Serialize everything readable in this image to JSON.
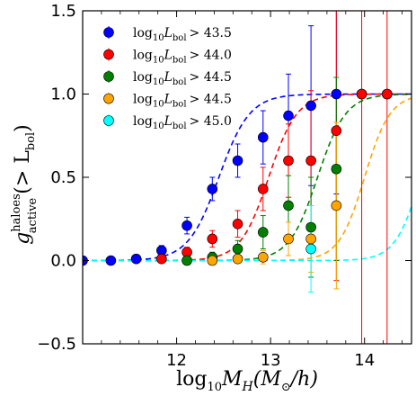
{
  "chart_data": {
    "type": "scatter",
    "title": "",
    "xlabel": "log₁₀Mʜ(M⊙/h)",
    "ylabel": "gᵃᶜᵗⁱᵛᵉ (> Lᵇᵒˡ)",
    "xlabel_parts": {
      "main": "log",
      "sub": "10",
      "rest1": "M",
      "sub2": "H",
      "rest2": "(M",
      "sub3": "⊙",
      "rest3": "/h)"
    },
    "ylabel_parts": {
      "main": "g",
      "sup": "haloes",
      "sub": "active",
      "rest": "(> L",
      "sub2": "bol",
      "end": ")"
    },
    "xlim": [
      11.0,
      14.5
    ],
    "ylim": [
      -0.5,
      1.5
    ],
    "x_ticks": [
      12,
      13,
      14
    ],
    "x_tick_labels": [
      "12",
      "13",
      "14"
    ],
    "y_ticks": [
      -0.5,
      0.0,
      0.5,
      1.0,
      1.5
    ],
    "y_tick_labels": [
      "−0.5",
      "0.0",
      "0.5",
      "1.0",
      "1.5"
    ],
    "legend_position": "top-left",
    "series": [
      {
        "name": "log₁₀Lᵇᵒˡ > 43.5",
        "label_parts": {
          "a": "log",
          "b": "10",
          "c": "L",
          "d": "bol",
          "e": "> 43.5"
        },
        "color": "#0000ff",
        "x": [
          11.0,
          11.3,
          11.57,
          11.84,
          12.11,
          12.38,
          12.65,
          12.92,
          13.19,
          13.43,
          13.7,
          13.97,
          14.24
        ],
        "y": [
          0.0,
          0.0,
          0.01,
          0.06,
          0.21,
          0.43,
          0.6,
          0.74,
          0.87,
          0.93,
          1.0,
          1.0,
          1.0
        ],
        "yerr": [
          0.0,
          0.0,
          0.01,
          0.03,
          0.05,
          0.07,
          0.1,
          0.16,
          0.25,
          0.48,
          0.6,
          0.0,
          0.0
        ],
        "curve_mid": 12.45,
        "curve_width": 0.36
      },
      {
        "name": "log₁₀Lᵇᵒˡ > 44.0",
        "label_parts": {
          "a": "log",
          "b": "10",
          "c": "L",
          "d": "bol",
          "e": "> 44.0"
        },
        "color": "#ff0000",
        "x": [
          11.84,
          12.11,
          12.38,
          12.65,
          12.92,
          13.19,
          13.43,
          13.7,
          13.97,
          14.24
        ],
        "y": [
          0.01,
          0.05,
          0.13,
          0.22,
          0.43,
          0.6,
          0.6,
          0.78,
          1.0,
          1.0
        ],
        "yerr": [
          0.01,
          0.03,
          0.05,
          0.08,
          0.13,
          0.22,
          0.42,
          0.9,
          1.6,
          1.6
        ],
        "curve_mid": 12.98,
        "curve_width": 0.33
      },
      {
        "name": "log₁₀Lᵇᵒˡ > 44.5",
        "label_parts": {
          "a": "log",
          "b": "10",
          "c": "L",
          "d": "bol",
          "e": "> 44.5"
        },
        "color": "#008000",
        "x": [
          12.11,
          12.38,
          12.65,
          12.92,
          13.19,
          13.43,
          13.7
        ],
        "y": [
          0.0,
          0.02,
          0.07,
          0.17,
          0.33,
          0.2,
          0.55
        ],
        "yerr": [
          0.02,
          0.03,
          0.05,
          0.1,
          0.18,
          0.3,
          0.55
        ],
        "curve_mid": 13.5,
        "curve_width": 0.33
      },
      {
        "name": "log₁₀Lᵇᵒˡ > 44.5",
        "label_parts": {
          "a": "log",
          "b": "10",
          "c": "L",
          "d": "bol",
          "e": "> 44.5"
        },
        "color": "#ffa500",
        "x": [
          12.38,
          12.65,
          12.92,
          13.19,
          13.43,
          13.7
        ],
        "y": [
          0.0,
          0.01,
          0.02,
          0.13,
          0.13,
          0.33
        ],
        "yerr": [
          0.01,
          0.02,
          0.04,
          0.1,
          0.2,
          0.5
        ],
        "curve_mid": 14.0,
        "curve_width": 0.3
      },
      {
        "name": "log₁₀Lᵇᵒˡ > 45.0",
        "label_parts": {
          "a": "log",
          "b": "10",
          "c": "L",
          "d": "bol",
          "e": "> 45.0"
        },
        "color": "#00ffff",
        "x": [
          13.43
        ],
        "y": [
          0.07
        ],
        "yerr": [
          0.26
        ],
        "curve_mid": 14.6,
        "curve_width": 0.3
      }
    ]
  }
}
